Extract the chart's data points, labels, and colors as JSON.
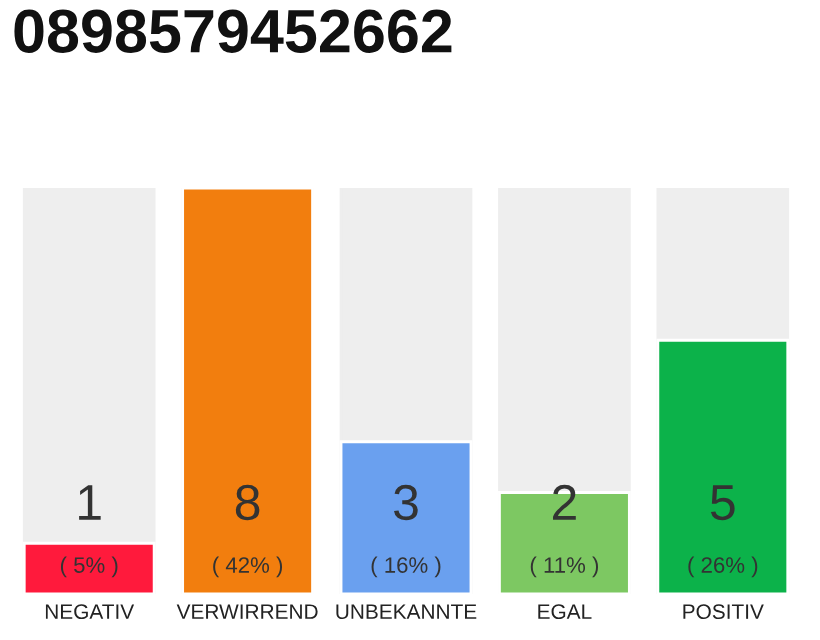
{
  "chart_data": {
    "type": "bar",
    "title": "0898579452662",
    "categories": [
      "NEGATIV",
      "VERWIRREND",
      "UNBEKANNTE",
      "EGAL",
      "POSITIV"
    ],
    "values": [
      1,
      8,
      3,
      2,
      5
    ],
    "colors": [
      "#ff1a3c",
      "#f27e0e",
      "#6aa0ef",
      "#7dc862",
      "#0cb24a"
    ],
    "ylim": [
      0,
      8
    ],
    "tick_labels": "x",
    "data_labels": true,
    "grid": false,
    "legend": false,
    "annotations": [
      {
        "text": "( 5% )",
        "x": "NEGATIV",
        "y": 0
      },
      {
        "text": "( 42% )",
        "x": "VERWIRREND",
        "y": 0
      },
      {
        "text": "( 16% )",
        "x": "UNBEKANNTE",
        "y": 0
      },
      {
        "text": "( 11% )",
        "x": "EGAL",
        "y": 0
      },
      {
        "text": "( 26% )",
        "x": "POSITIV",
        "y": 0
      }
    ]
  }
}
